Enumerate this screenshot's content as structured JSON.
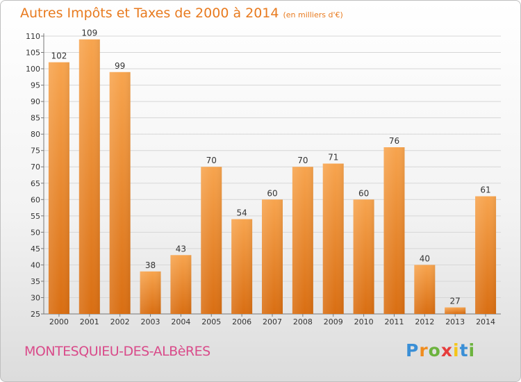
{
  "title": "Autres Impôts et Taxes de 2000 à 2014",
  "unit": "(en milliers d'€)",
  "commune": "MONTESQUIEU-DES-ALBèRES",
  "logo": {
    "letters": [
      "P",
      "r",
      "o",
      "x",
      "i",
      "t",
      "i"
    ],
    "colors": [
      "#3a8fd6",
      "#f08c1e",
      "#6cb33e",
      "#e63c3c",
      "#f5c518",
      "#3a8fd6",
      "#6cb33e"
    ]
  },
  "colors": {
    "bar_top": "#f7a44e",
    "bar_bottom": "#d96e12",
    "title": "#e87a1e",
    "commune": "#d94b8a"
  },
  "chart_data": {
    "type": "bar",
    "categories": [
      "2000",
      "2001",
      "2002",
      "2003",
      "2004",
      "2005",
      "2006",
      "2007",
      "2008",
      "2009",
      "2010",
      "2011",
      "2012",
      "2013",
      "2014"
    ],
    "values": [
      102,
      109,
      99,
      38,
      43,
      70,
      54,
      60,
      70,
      71,
      60,
      76,
      40,
      27,
      61
    ],
    "ylim": [
      25,
      110
    ],
    "yticks": [
      25,
      30,
      35,
      40,
      45,
      50,
      55,
      60,
      65,
      70,
      75,
      80,
      85,
      90,
      95,
      100,
      105,
      110
    ],
    "grid": true,
    "xlabel": "",
    "ylabel": ""
  }
}
